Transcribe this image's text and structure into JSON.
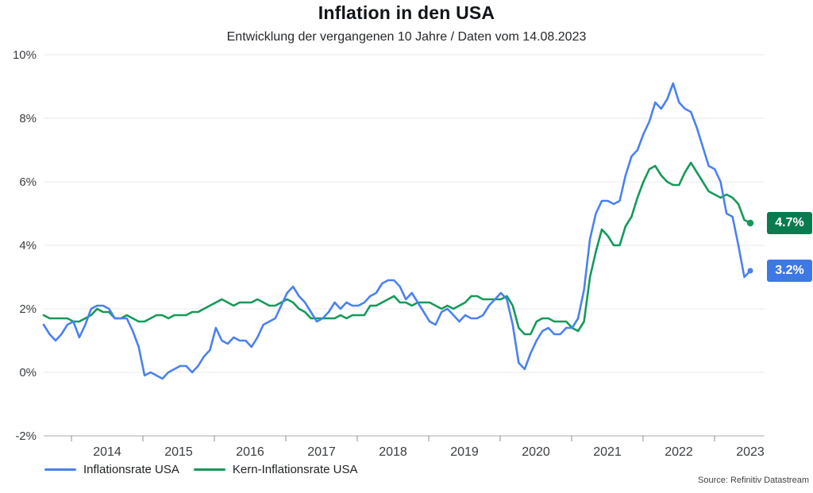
{
  "footer": {
    "source": "Source: Refinitiv Datastream"
  },
  "badges": [
    {
      "text": "4.7%",
      "value": 4.7,
      "color": "#087c4e",
      "series": "Kern-Inflationsrate USA"
    },
    {
      "text": "3.2%",
      "value": 3.2,
      "color": "#3e78e7",
      "series": "Inflationsrate USA"
    }
  ],
  "chart_data": {
    "type": "line",
    "title": "Inflation in den USA",
    "subtitle": "Entwicklung der vergangenen 10 Jahre / Daten vom 14.08.2023",
    "xlabel": "",
    "ylabel": "",
    "x_start": "2013-08",
    "x_end": "2023-07",
    "frequency": "monthly",
    "ylim": [
      -2,
      10
    ],
    "y_gridlines": [
      10,
      8,
      6,
      4,
      2,
      0,
      -2
    ],
    "y_tick_labels": [
      "10%",
      "8%",
      "6%",
      "4%",
      "2%",
      "0%",
      "-2%"
    ],
    "x_tick_labels": [
      "2014",
      "2015",
      "2016",
      "2017",
      "2018",
      "2019",
      "2020",
      "2021",
      "2022",
      "2023"
    ],
    "grid": true,
    "legend_position": "bottom-left",
    "series": [
      {
        "name": "Inflationsrate USA",
        "color": "#4a81f0",
        "last_value_label": "3.2%",
        "values": [
          1.5,
          1.2,
          1.0,
          1.2,
          1.5,
          1.6,
          1.1,
          1.5,
          2.0,
          2.1,
          2.1,
          2.0,
          1.7,
          1.7,
          1.7,
          1.3,
          0.8,
          -0.1,
          0.0,
          -0.1,
          -0.2,
          0.0,
          0.1,
          0.2,
          0.2,
          0.0,
          0.2,
          0.5,
          0.7,
          1.4,
          1.0,
          0.9,
          1.1,
          1.0,
          1.0,
          0.8,
          1.1,
          1.5,
          1.6,
          1.7,
          2.1,
          2.5,
          2.7,
          2.4,
          2.2,
          1.9,
          1.6,
          1.7,
          1.9,
          2.2,
          2.0,
          2.2,
          2.1,
          2.1,
          2.2,
          2.4,
          2.5,
          2.8,
          2.9,
          2.9,
          2.7,
          2.3,
          2.5,
          2.2,
          1.9,
          1.6,
          1.5,
          1.9,
          2.0,
          1.8,
          1.6,
          1.8,
          1.7,
          1.7,
          1.8,
          2.1,
          2.3,
          2.5,
          2.3,
          1.5,
          0.3,
          0.1,
          0.6,
          1.0,
          1.3,
          1.4,
          1.2,
          1.2,
          1.4,
          1.4,
          1.7,
          2.6,
          4.2,
          5.0,
          5.4,
          5.4,
          5.3,
          5.4,
          6.2,
          6.8,
          7.0,
          7.5,
          7.9,
          8.5,
          8.3,
          8.6,
          9.1,
          8.5,
          8.3,
          8.2,
          7.7,
          7.1,
          6.5,
          6.4,
          6.0,
          5.0,
          4.9,
          4.0,
          3.0,
          3.2
        ]
      },
      {
        "name": "Kern-Inflationsrate USA",
        "color": "#149a58",
        "last_value_label": "4.7%",
        "values": [
          1.8,
          1.7,
          1.7,
          1.7,
          1.7,
          1.6,
          1.6,
          1.7,
          1.8,
          2.0,
          1.9,
          1.9,
          1.7,
          1.7,
          1.8,
          1.7,
          1.6,
          1.6,
          1.7,
          1.8,
          1.8,
          1.7,
          1.8,
          1.8,
          1.8,
          1.9,
          1.9,
          2.0,
          2.1,
          2.2,
          2.3,
          2.2,
          2.1,
          2.2,
          2.2,
          2.2,
          2.3,
          2.2,
          2.1,
          2.1,
          2.2,
          2.3,
          2.2,
          2.0,
          1.9,
          1.7,
          1.7,
          1.7,
          1.7,
          1.7,
          1.8,
          1.7,
          1.8,
          1.8,
          1.8,
          2.1,
          2.1,
          2.2,
          2.3,
          2.4,
          2.2,
          2.2,
          2.1,
          2.2,
          2.2,
          2.2,
          2.1,
          2.0,
          2.1,
          2.0,
          2.1,
          2.2,
          2.4,
          2.4,
          2.3,
          2.3,
          2.3,
          2.3,
          2.4,
          2.1,
          1.4,
          1.2,
          1.2,
          1.6,
          1.7,
          1.7,
          1.6,
          1.6,
          1.6,
          1.4,
          1.3,
          1.6,
          3.0,
          3.8,
          4.5,
          4.3,
          4.0,
          4.0,
          4.6,
          4.9,
          5.5,
          6.0,
          6.4,
          6.5,
          6.2,
          6.0,
          5.9,
          5.9,
          6.3,
          6.6,
          6.3,
          6.0,
          5.7,
          5.6,
          5.5,
          5.6,
          5.5,
          5.3,
          4.8,
          4.7
        ]
      }
    ]
  }
}
